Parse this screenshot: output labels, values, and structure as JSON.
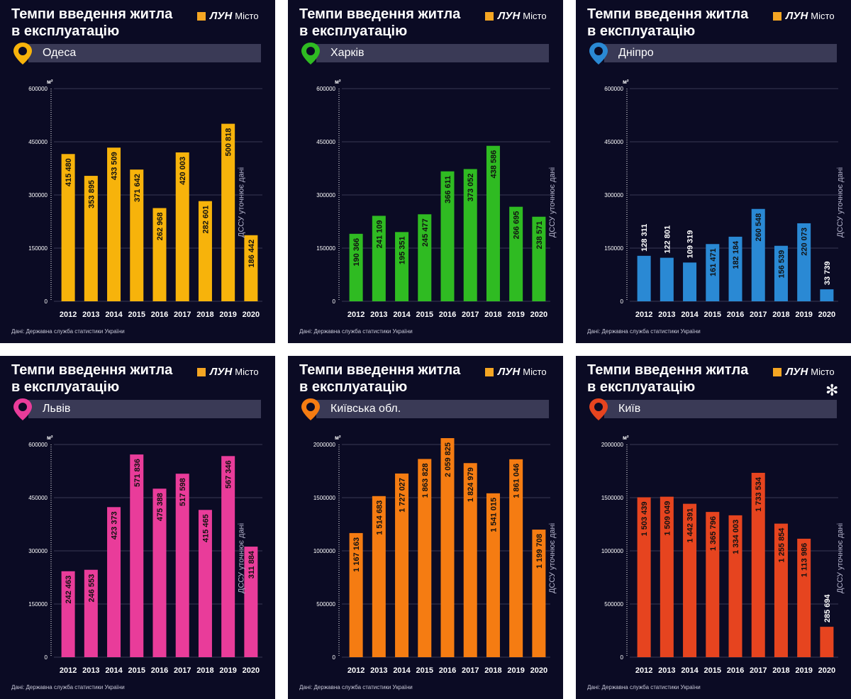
{
  "title_line1": "Темпи введення житла",
  "title_line2": "в експлуатацію",
  "logo_word": "ЛУН",
  "logo_city": "Місто",
  "unit": "м²",
  "source": "Дані: Державна служба статистики України",
  "note": "ДССУ уточнює дані",
  "colors": {
    "background": "#0b0b24",
    "city_bar": "#3a3a56",
    "logo": "#f5a623"
  },
  "chart_data": [
    {
      "type": "bar",
      "city": "Одеса",
      "color": "#f7b30b",
      "categories": [
        "2012",
        "2013",
        "2014",
        "2015",
        "2016",
        "2017",
        "2018",
        "2019",
        "2020"
      ],
      "values": [
        415480,
        353895,
        433509,
        371642,
        262968,
        420003,
        282601,
        500818,
        186442
      ],
      "value_labels": [
        "415 480",
        "353 895",
        "433 509",
        "371 642",
        "262 968",
        "420 003",
        "282 601",
        "500 818",
        "186 442"
      ],
      "yticks": [
        0,
        150000,
        300000,
        450000,
        600000
      ],
      "ylim": [
        0,
        600000
      ],
      "note_after_index": 7,
      "star": false
    },
    {
      "type": "bar",
      "city": "Харків",
      "color": "#2fbb22",
      "categories": [
        "2012",
        "2013",
        "2014",
        "2015",
        "2016",
        "2017",
        "2018",
        "2019",
        "2020"
      ],
      "values": [
        190366,
        241109,
        195351,
        245477,
        366611,
        373052,
        438586,
        266695,
        238571
      ],
      "value_labels": [
        "190 366",
        "241 109",
        "195 351",
        "245 477",
        "366 611",
        "373 052",
        "438 586",
        "266 695",
        "238 571"
      ],
      "yticks": [
        0,
        150000,
        300000,
        450000,
        600000
      ],
      "ylim": [
        0,
        600000
      ],
      "note_after_index": 8,
      "star": false
    },
    {
      "type": "bar",
      "city": "Дніпро",
      "color": "#2a89d4",
      "categories": [
        "2012",
        "2013",
        "2014",
        "2015",
        "2016",
        "2017",
        "2018",
        "2019",
        "2020"
      ],
      "values": [
        128311,
        122801,
        109319,
        161471,
        182184,
        260548,
        156539,
        220073,
        33739
      ],
      "value_labels": [
        "128 311",
        "122 801",
        "109 319",
        "161 471",
        "182 184",
        "260 548",
        "156 539",
        "220 073",
        "33 739"
      ],
      "yticks": [
        0,
        150000,
        300000,
        450000,
        600000
      ],
      "ylim": [
        0,
        600000
      ],
      "note_after_index": 8,
      "star": false
    },
    {
      "type": "bar",
      "city": "Львів",
      "color": "#e93c9a",
      "categories": [
        "2012",
        "2013",
        "2014",
        "2015",
        "2016",
        "2017",
        "2018",
        "2019",
        "2020"
      ],
      "values": [
        242463,
        246553,
        423373,
        571836,
        475388,
        517598,
        415465,
        567346,
        311884
      ],
      "value_labels": [
        "242 463",
        "246 553",
        "423 373",
        "571 836",
        "475 388",
        "517 598",
        "415 465",
        "567 346",
        "311 884"
      ],
      "yticks": [
        0,
        150000,
        300000,
        450000,
        600000
      ],
      "ylim": [
        0,
        600000
      ],
      "note_after_index": 7,
      "star": false
    },
    {
      "type": "bar",
      "city": "Київська обл.",
      "color": "#f57c12",
      "categories": [
        "2012",
        "2013",
        "2014",
        "2015",
        "2016",
        "2017",
        "2018",
        "2019",
        "2020"
      ],
      "values": [
        1167163,
        1514683,
        1727027,
        1863828,
        2059825,
        1824979,
        1541015,
        1861046,
        1199708
      ],
      "value_labels": [
        "1 167 163",
        "1 514 683",
        "1 727 027",
        "1 863 828",
        "2 059 825",
        "1 824 979",
        "1 541 015",
        "1 861 046",
        "1 199 708"
      ],
      "yticks": [
        0,
        500000,
        1000000,
        1500000,
        2000000
      ],
      "ylim": [
        0,
        2000000
      ],
      "note_after_index": 8,
      "star": false
    },
    {
      "type": "bar",
      "city": "Київ",
      "color": "#e6441f",
      "categories": [
        "2012",
        "2013",
        "2014",
        "2015",
        "2016",
        "2017",
        "2018",
        "2019",
        "2020"
      ],
      "values": [
        1503439,
        1509049,
        1442391,
        1365796,
        1334003,
        1733534,
        1255854,
        1113986,
        285694
      ],
      "value_labels": [
        "1 503 439",
        "1 509 049",
        "1 442 391",
        "1 365 796",
        "1 334 003",
        "1 733 534",
        "1 255 854",
        "1 113 986",
        "285 694"
      ],
      "yticks": [
        0,
        500000,
        1000000,
        1500000,
        2000000
      ],
      "ylim": [
        0,
        2000000
      ],
      "note_after_index": 8,
      "star": true
    }
  ]
}
